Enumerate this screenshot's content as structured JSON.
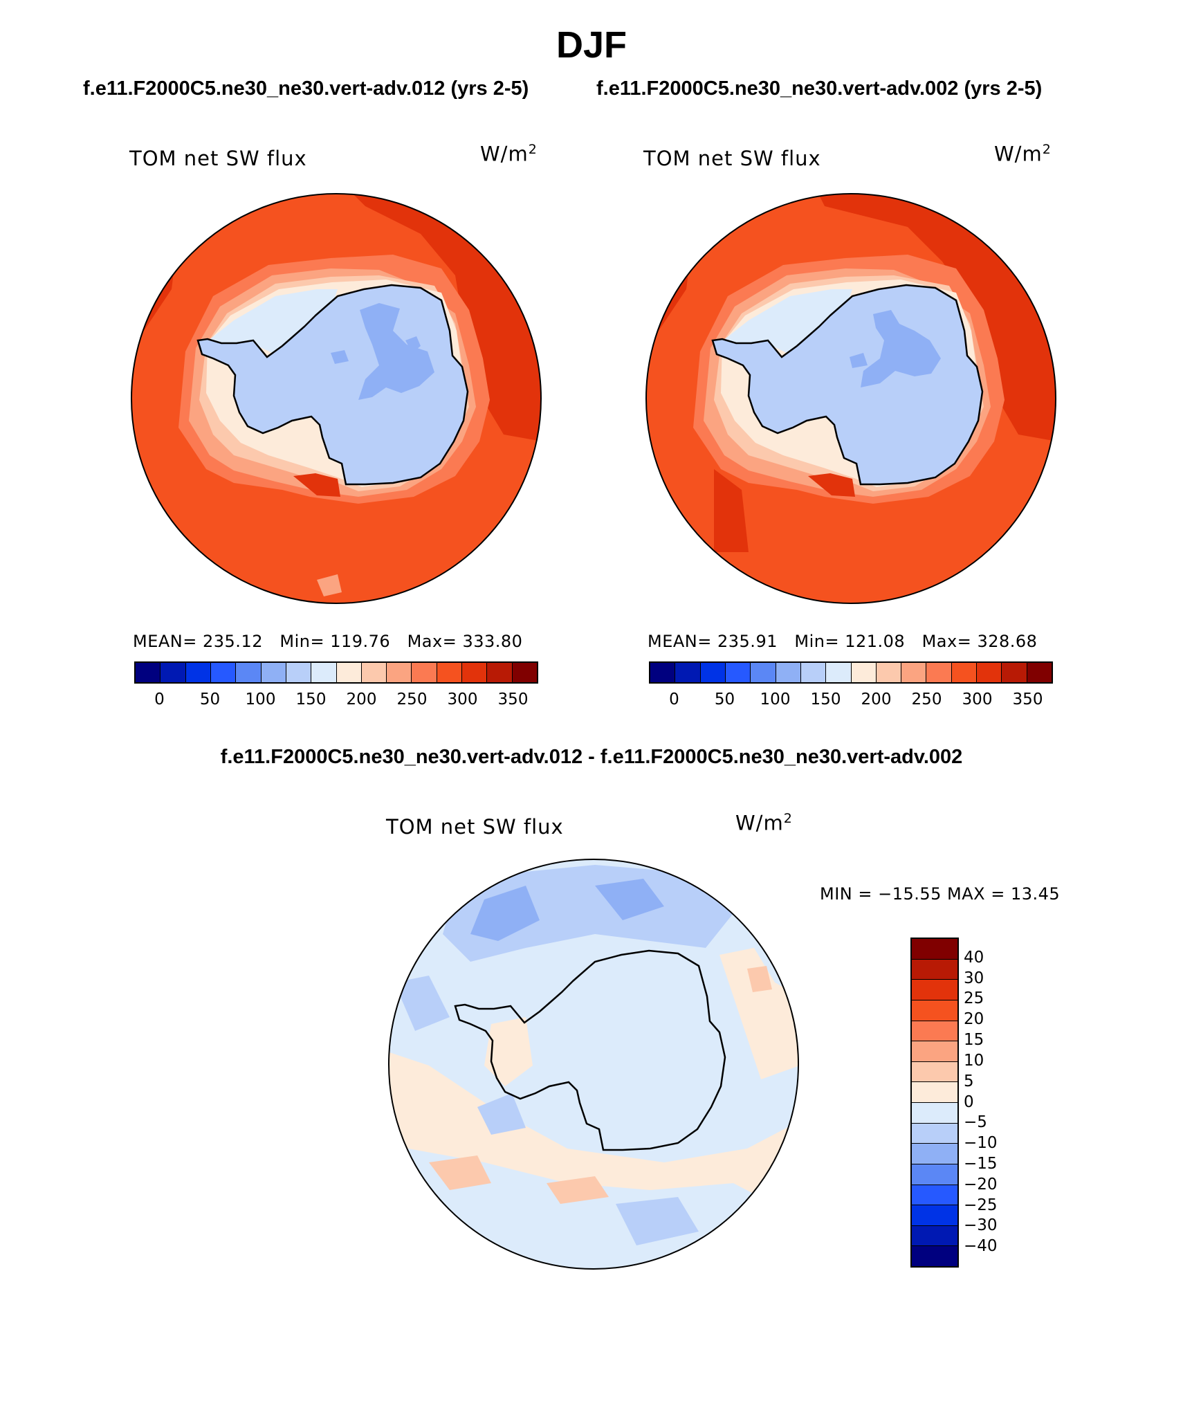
{
  "title": "DJF",
  "case_titles": {
    "left": "f.e11.F2000C5.ne30_ne30.vert-adv.012 (yrs 2-5)",
    "right": "f.e11.F2000C5.ne30_ne30.vert-adv.002 (yrs 2-5)"
  },
  "diff_title": "f.e11.F2000C5.ne30_ne30.vert-adv.012 - f.e11.F2000C5.ne30_ne30.vert-adv.002",
  "panels": {
    "left": {
      "label": "TOM net SW flux",
      "units": "W/m",
      "units_sup": "2",
      "mean_label": "MEAN=",
      "mean": "235.12",
      "min_label": "Min=",
      "min": "119.76",
      "max_label": "Max=",
      "max": "333.80"
    },
    "right": {
      "label": "TOM net SW flux",
      "units": "W/m",
      "units_sup": "2",
      "mean_label": "MEAN=",
      "mean": "235.91",
      "min_label": "Min=",
      "min": "121.08",
      "max_label": "Max=",
      "max": "328.68"
    },
    "diff": {
      "label": "TOM net SW flux",
      "units": "W/m",
      "units_sup": "2",
      "minmax_text": "MIN = −15.55 MAX =   13.45"
    }
  },
  "colorbar_abs": {
    "colors": [
      "#00007f",
      "#0019b3",
      "#0033e6",
      "#2659ff",
      "#5b87f5",
      "#8fb0f5",
      "#b8cff9",
      "#dcebfb",
      "#fdebda",
      "#fcc9ad",
      "#fba481",
      "#fb7a52",
      "#f5521f",
      "#e2330b",
      "#b81a05",
      "#800000"
    ],
    "ticks": [
      "0",
      "50",
      "100",
      "150",
      "200",
      "250",
      "300",
      "350"
    ]
  },
  "colorbar_diff": {
    "colors": [
      "#800000",
      "#b81a05",
      "#e2330b",
      "#f5521f",
      "#fb7a52",
      "#fba481",
      "#fcc9ad",
      "#fdebda",
      "#dcebfb",
      "#b8cff9",
      "#8fb0f5",
      "#5b87f5",
      "#2659ff",
      "#0033e6",
      "#0019b3",
      "#00007f"
    ],
    "ticks": [
      "40",
      "30",
      "25",
      "20",
      "15",
      "10",
      "5",
      "0",
      "−5",
      "−10",
      "−15",
      "−20",
      "−25",
      "−30",
      "−40"
    ]
  },
  "map_colors": {
    "ocean_main": "#f5521f",
    "ocean_dark": "#e2330b",
    "halo_1": "#fb7a52",
    "halo_2": "#fba481",
    "halo_3": "#fcc9ad",
    "halo_4": "#fdebda",
    "coast_ice": "#dcebfb",
    "ice": "#b8cff9",
    "plateau": "#8fb0f5",
    "diff_base": "#dcebfb",
    "diff_warm": "#fdebda",
    "diff_warm2": "#fcc9ad",
    "diff_cool": "#b8cff9",
    "diff_cool2": "#8fb0f5",
    "coastline": "#000000"
  }
}
